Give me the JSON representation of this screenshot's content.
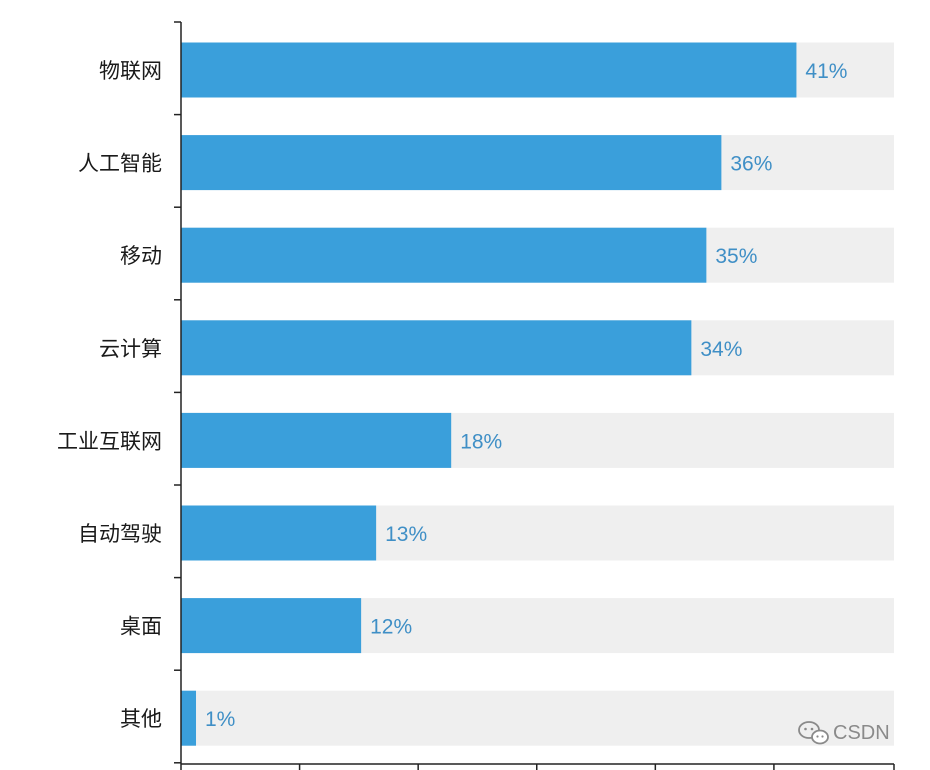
{
  "chart_data": {
    "type": "bar",
    "orientation": "horizontal",
    "categories": [
      "物联网",
      "人工智能",
      "移动",
      "云计算",
      "工业互联网",
      "自动驾驶",
      "桌面",
      "其他"
    ],
    "values": [
      41,
      36,
      35,
      34,
      18,
      13,
      12,
      1
    ],
    "data_labels": [
      "41%",
      "36%",
      "35%",
      "34%",
      "18%",
      "13%",
      "12%",
      "1%"
    ],
    "unit": "%",
    "xlim": [
      0,
      47.5
    ],
    "x_ticks": [
      0,
      7.9,
      15.8,
      23.7,
      31.6,
      39.5,
      47.5
    ],
    "grid": false,
    "legend": "none",
    "title": "",
    "xlabel": "",
    "ylabel": ""
  },
  "watermark": {
    "text": "CSDN",
    "icon": "wechat-icon"
  },
  "colors": {
    "bar": "#3a9fdb",
    "track": "#efefef",
    "axis": "#222222",
    "label_value": "#3f8fc6",
    "label_category": "#1a1a1a",
    "watermark": "#8a8a8a"
  }
}
